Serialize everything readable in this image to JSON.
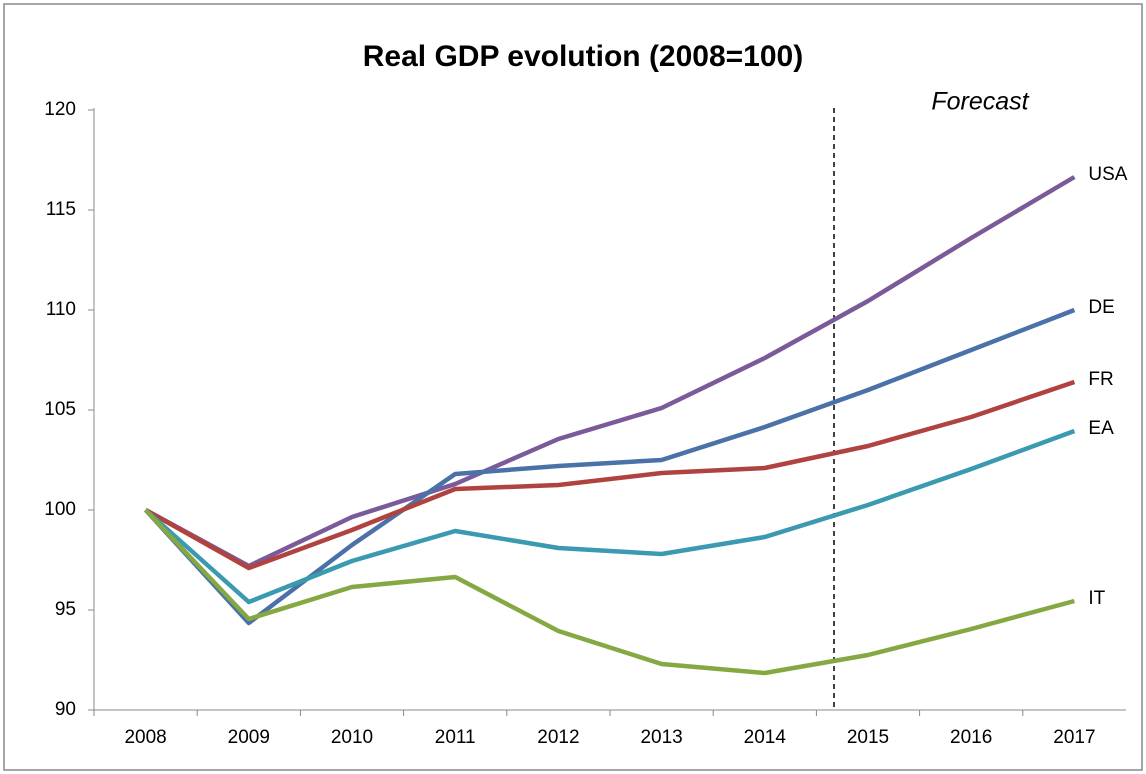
{
  "chart_data": {
    "type": "line",
    "title": "Real GDP evolution (2008=100)",
    "annotation": "Forecast",
    "categories": [
      "2008",
      "2009",
      "2010",
      "2011",
      "2012",
      "2013",
      "2014",
      "2015",
      "2016",
      "2017"
    ],
    "series": [
      {
        "name": "USA",
        "color": "#7b5a9a",
        "values": [
          100,
          97.2,
          99.65,
          101.3,
          103.55,
          105.1,
          107.6,
          110.45,
          113.6,
          116.65
        ]
      },
      {
        "name": "DE",
        "color": "#4a72a8",
        "values": [
          100,
          94.35,
          98.25,
          101.8,
          102.2,
          102.5,
          104.15,
          106,
          108,
          110
        ]
      },
      {
        "name": "FR",
        "color": "#b04340",
        "values": [
          100,
          97.1,
          99,
          101.05,
          101.25,
          101.85,
          102.1,
          103.2,
          104.65,
          106.4
        ]
      },
      {
        "name": "EA",
        "color": "#3b9ab0",
        "values": [
          100,
          95.4,
          97.45,
          98.95,
          98.1,
          97.8,
          98.65,
          100.25,
          102.05,
          103.95
        ]
      },
      {
        "name": "IT",
        "color": "#86a843",
        "values": [
          100,
          94.55,
          96.15,
          96.65,
          93.95,
          92.3,
          91.85,
          92.75,
          94.05,
          95.45
        ]
      }
    ],
    "ylim": [
      90,
      120
    ],
    "yticks": [
      90,
      95,
      100,
      105,
      110,
      115,
      120
    ],
    "grid": false
  }
}
